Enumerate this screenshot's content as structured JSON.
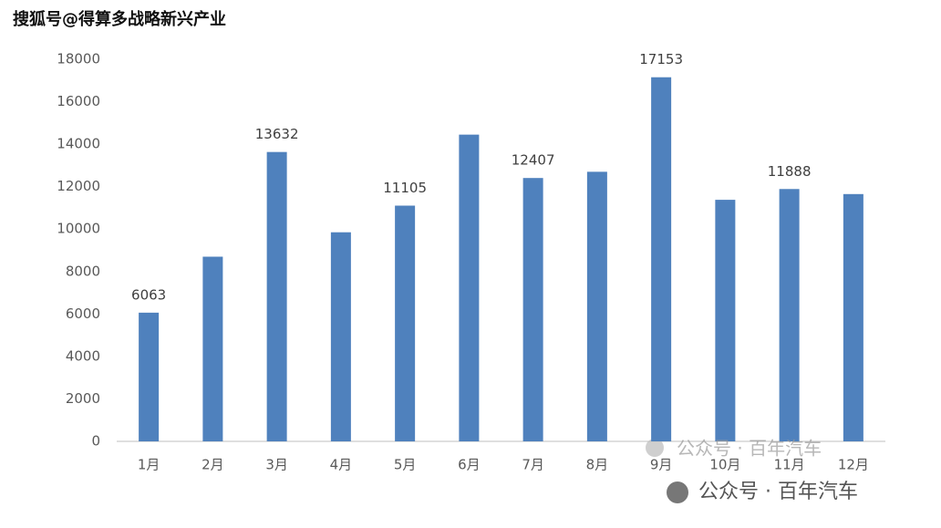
{
  "watermarks": [
    "搜狐号@得算多战略新兴产业",
    "公众号 · 百年汽车",
    "公众号 · 百年汽车"
  ],
  "chart_data": {
    "type": "bar",
    "categories": [
      "1月",
      "2月",
      "3月",
      "4月",
      "5月",
      "6月",
      "7月",
      "8月",
      "9月",
      "10月",
      "11月",
      "12月"
    ],
    "values": [
      6063,
      8700,
      13632,
      9850,
      11105,
      14450,
      12407,
      12700,
      17153,
      11380,
      11888,
      11650
    ],
    "value_labels": [
      6063,
      null,
      13632,
      null,
      11105,
      null,
      12407,
      null,
      17153,
      null,
      11888,
      null
    ],
    "color": "#4f81bd",
    "ylim": [
      0,
      18000
    ],
    "yticks": [
      0,
      2000,
      4000,
      6000,
      8000,
      10000,
      12000,
      14000,
      16000,
      18000
    ],
    "grid": false
  }
}
